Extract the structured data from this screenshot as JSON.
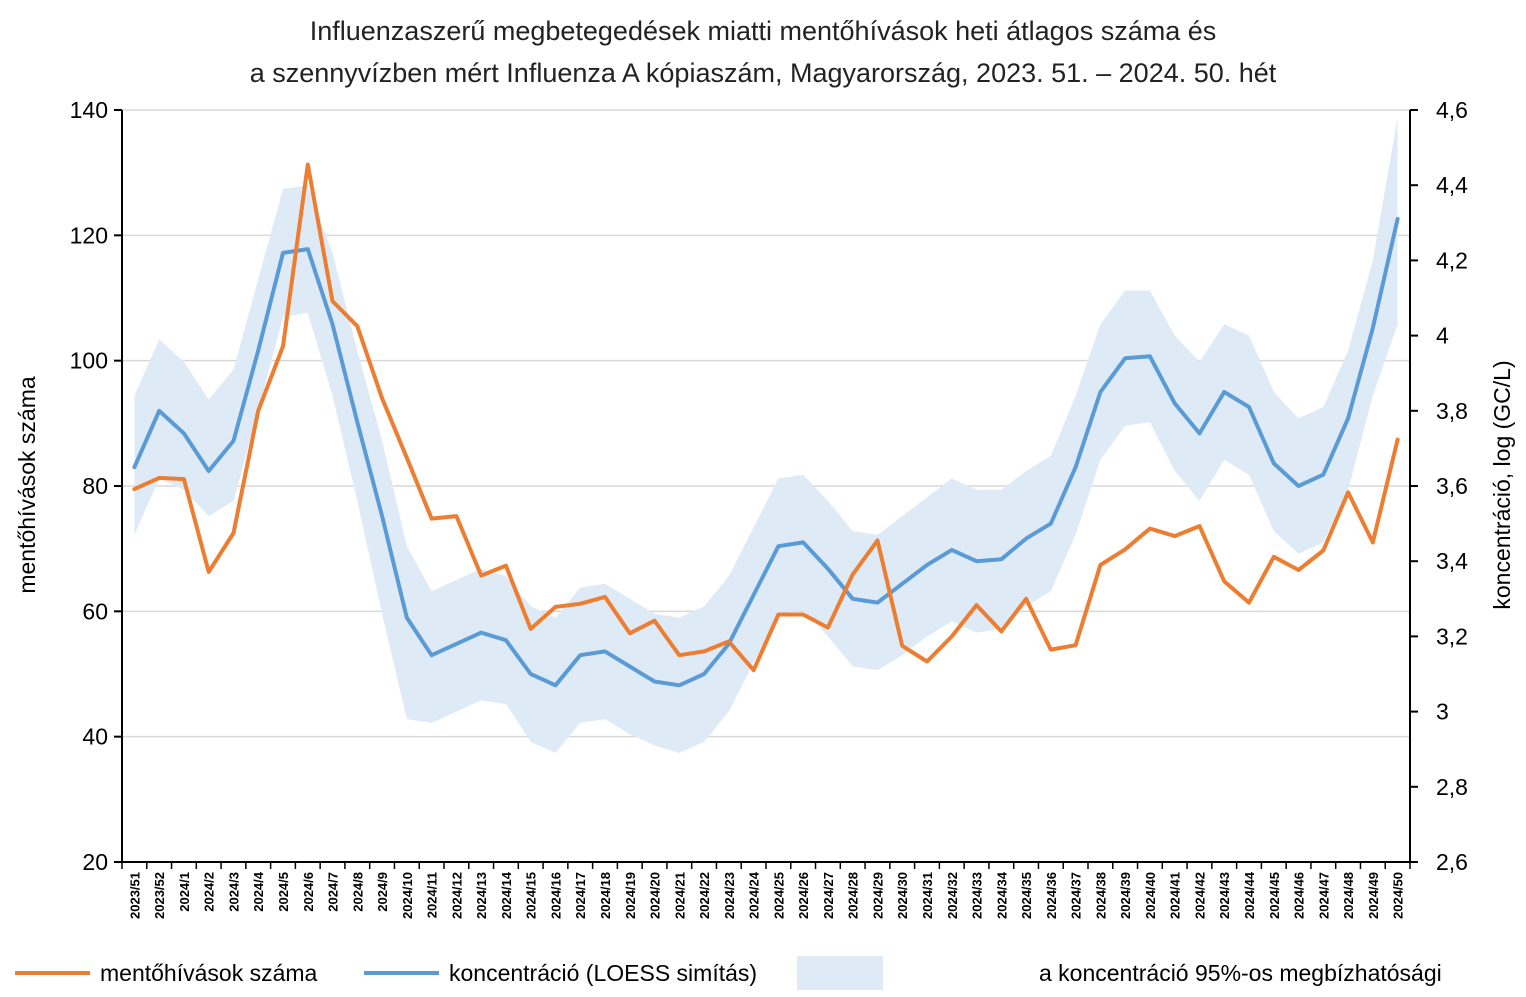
{
  "chart_data": {
    "type": "line",
    "title": "Influenzaszerű megbetegedések miatti mentőhívások heti átlagos száma és",
    "subtitle": "a szennyvízben mért Influenza A kópiaszám, Magyarország, 2023. 51. – 2024. 50. hét",
    "ylabel_left": "mentőhívások száma",
    "ylabel_right": "koncentráció, log (GC/L)",
    "ylim_left": [
      20,
      140
    ],
    "ylim_right": [
      2.6,
      4.6
    ],
    "yticks_left": [
      "20",
      "40",
      "60",
      "80",
      "100",
      "120",
      "140"
    ],
    "yticks_right": [
      "2,6",
      "2,8",
      "3",
      "3,2",
      "3,4",
      "3,6",
      "3,8",
      "4",
      "4,2",
      "4,4",
      "4,6"
    ],
    "grid": "horizontal",
    "legend_position": "bottom",
    "categories": [
      "2023/51",
      "2023/52",
      "2024/1",
      "2024/2",
      "2024/3",
      "2024/4",
      "2024/5",
      "2024/6",
      "2024/7",
      "2024/8",
      "2024/9",
      "2024/10",
      "2024/11",
      "2024/12",
      "2024/13",
      "2024/14",
      "2024/15",
      "2024/16",
      "2024/17",
      "2024/18",
      "2024/19",
      "2024/20",
      "2024/21",
      "2024/22",
      "2024/23",
      "2024/24",
      "2024/25",
      "2024/26",
      "2024/27",
      "2024/28",
      "2024/29",
      "2024/30",
      "2024/31",
      "2024/32",
      "2024/33",
      "2024/34",
      "2024/35",
      "2024/36",
      "2024/37",
      "2024/38",
      "2024/39",
      "2024/40",
      "2024/41",
      "2024/42",
      "2024/43",
      "2024/44",
      "2024/45",
      "2024/46",
      "2024/47",
      "2024/48",
      "2024/49",
      "2024/50"
    ],
    "series": [
      {
        "name": "mentőhívások száma",
        "axis": "left",
        "color": "#ED7D31",
        "values": [
          79.5,
          81.3,
          81.1,
          66.3,
          72.5,
          92.0,
          102.3,
          131.3,
          109.5,
          105.5,
          94.0,
          84.5,
          74.8,
          75.2,
          65.7,
          67.3,
          57.2,
          60.7,
          61.2,
          62.3,
          56.5,
          58.5,
          53.0,
          53.6,
          55.2,
          50.6,
          59.5,
          59.5,
          57.4,
          65.9,
          71.3,
          54.5,
          52.0,
          56.0,
          61.0,
          56.8,
          62.0,
          53.9,
          54.6,
          67.4,
          69.9,
          73.2,
          72.0,
          73.6,
          64.8,
          61.4,
          68.7,
          66.6,
          69.7,
          79.0,
          71.0,
          87.4
        ]
      },
      {
        "name": "koncentráció (LOESS simítás)",
        "axis": "right",
        "color": "#5B9BD5",
        "values": [
          3.65,
          3.8,
          3.74,
          3.64,
          3.72,
          3.96,
          4.22,
          4.23,
          4.03,
          3.77,
          3.52,
          3.25,
          3.15,
          3.18,
          3.21,
          3.19,
          3.1,
          3.07,
          3.15,
          3.16,
          3.12,
          3.08,
          3.07,
          3.1,
          3.18,
          3.31,
          3.44,
          3.45,
          3.38,
          3.3,
          3.29,
          3.34,
          3.39,
          3.43,
          3.4,
          3.405,
          3.46,
          3.5,
          3.65,
          3.85,
          3.94,
          3.945,
          3.82,
          3.74,
          3.85,
          3.81,
          3.66,
          3.6,
          3.63,
          3.78,
          4.02,
          4.31
        ]
      }
    ],
    "confidence_band": {
      "name": "a koncentráció 95%-os megbízhatósági",
      "axis": "right",
      "color": "#DEEBF7",
      "lower": [
        3.47,
        3.62,
        3.59,
        3.52,
        3.56,
        3.8,
        4.05,
        4.06,
        3.84,
        3.56,
        3.26,
        2.98,
        2.97,
        3.0,
        3.03,
        3.02,
        2.92,
        2.89,
        2.97,
        2.98,
        2.94,
        2.91,
        2.89,
        2.92,
        3.0,
        3.13,
        3.26,
        3.27,
        3.2,
        3.12,
        3.11,
        3.15,
        3.2,
        3.24,
        3.21,
        3.22,
        3.28,
        3.32,
        3.47,
        3.67,
        3.76,
        3.77,
        3.64,
        3.56,
        3.67,
        3.63,
        3.48,
        3.42,
        3.45,
        3.59,
        3.84,
        4.03
      ],
      "upper": [
        3.84,
        3.99,
        3.93,
        3.83,
        3.91,
        4.15,
        4.39,
        4.4,
        4.22,
        3.96,
        3.72,
        3.44,
        3.32,
        3.35,
        3.38,
        3.36,
        3.28,
        3.25,
        3.33,
        3.34,
        3.3,
        3.26,
        3.25,
        3.28,
        3.36,
        3.49,
        3.62,
        3.63,
        3.56,
        3.48,
        3.47,
        3.52,
        3.57,
        3.62,
        3.59,
        3.59,
        3.64,
        3.68,
        3.84,
        4.03,
        4.12,
        4.12,
        4.0,
        3.93,
        4.03,
        4.0,
        3.85,
        3.78,
        3.81,
        3.96,
        4.2,
        4.58
      ]
    }
  }
}
